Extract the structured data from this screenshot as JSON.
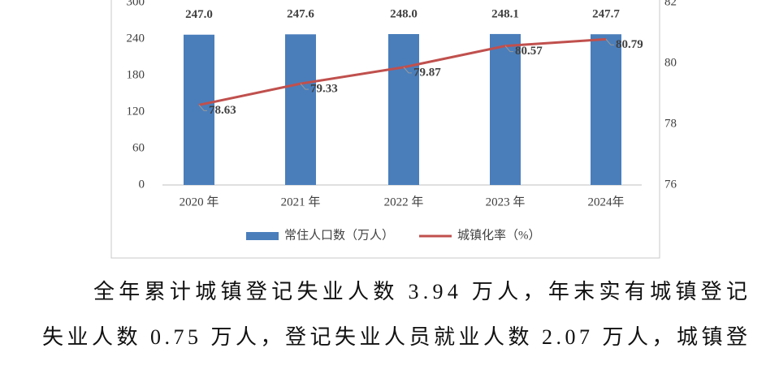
{
  "chart_data": {
    "type": "bar",
    "categories": [
      "2020 年",
      "2021 年",
      "2022 年",
      "2023 年",
      "2024年"
    ],
    "series": [
      {
        "name": "常住人口数（万人）",
        "type": "bar",
        "color": "#4a7ebb",
        "values": [
          247,
          247.6,
          248,
          248.1,
          247.7
        ],
        "value_labels": [
          "247.0",
          "247.6",
          "248.0",
          "248.1",
          "247.7"
        ]
      },
      {
        "name": "城镇化率（%）",
        "type": "line",
        "axis": "y2",
        "color": "#c0504d",
        "values": [
          78.63,
          79.33,
          79.87,
          80.57,
          80.79
        ]
      }
    ],
    "ylim": [
      0,
      300
    ],
    "yticks": [
      0,
      60,
      120,
      180,
      240,
      300
    ],
    "y2lim": [
      76,
      82
    ],
    "y2ticks": [
      76,
      78,
      80,
      82
    ],
    "legend": "bottom"
  },
  "document": {
    "lines": [
      "全年累计城镇登记失业人数 3.94 万人，年末实有城镇登记",
      "失业人数 0.75 万人，登记失业人员就业人数 2.07 万人，城镇登"
    ]
  }
}
